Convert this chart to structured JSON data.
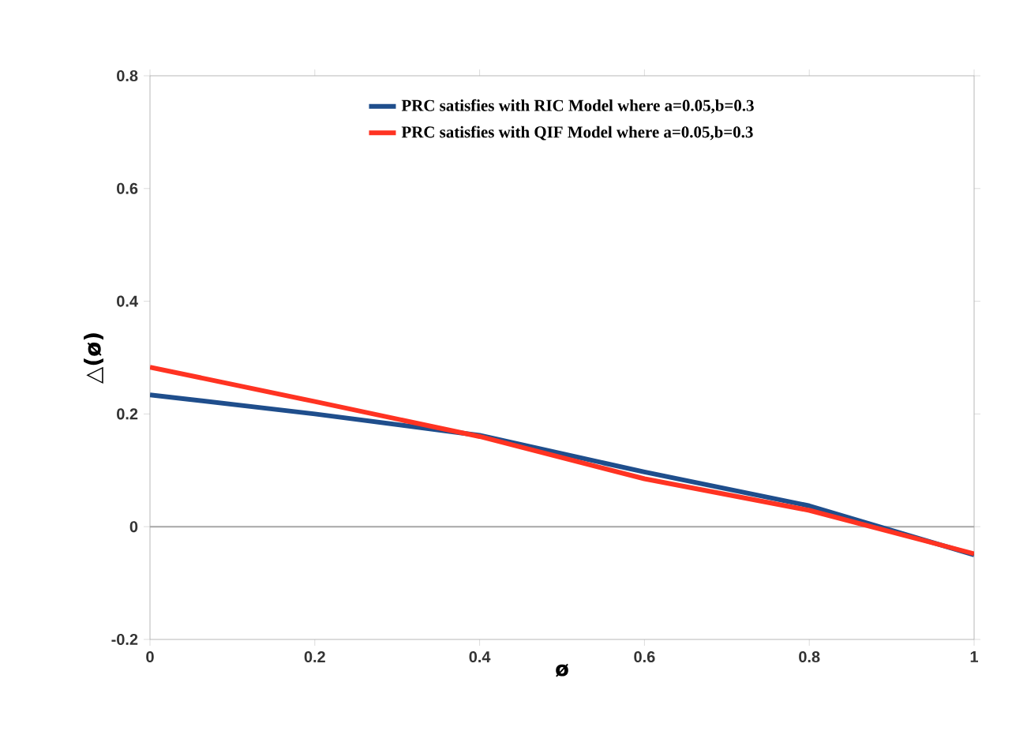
{
  "chart_data": {
    "type": "line",
    "xlabel": "ø",
    "ylabel": "△(ø)",
    "x": [
      0,
      0.2,
      0.4,
      0.6,
      0.8,
      1.0
    ],
    "series": [
      {
        "name": "PRC satisfies with RIC Model where a=0.05,b=0.3",
        "color": "#1f4e8c",
        "values": [
          0.234,
          0.2,
          0.162,
          0.097,
          0.037,
          -0.05
        ]
      },
      {
        "name": "PRC satisfies with QIF Model where a=0.05,b=0.3",
        "color": "#ff3322",
        "values": [
          0.283,
          0.222,
          0.16,
          0.085,
          0.029,
          -0.048
        ]
      }
    ],
    "xlim": [
      0,
      1
    ],
    "ylim": [
      -0.2,
      0.8
    ],
    "xticks": [
      0,
      0.2,
      0.4,
      0.6,
      0.8,
      1
    ],
    "yticks": [
      -0.2,
      0,
      0.2,
      0.4,
      0.6,
      0.8
    ],
    "ref_lines": [
      {
        "axis": "y",
        "value": 0,
        "color": "#a6a6a6"
      }
    ],
    "legend": "top",
    "grid": false,
    "marker": "none",
    "line_style": "solid"
  }
}
